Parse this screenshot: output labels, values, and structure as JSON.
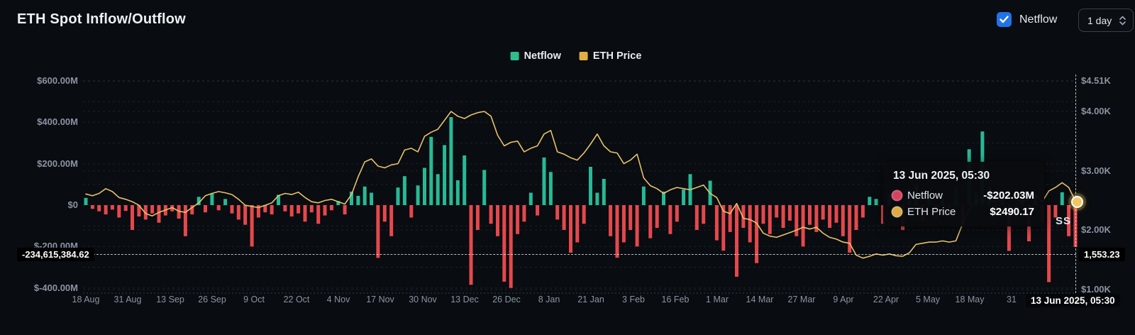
{
  "header": {
    "title": "ETH Spot Inflow/Outflow"
  },
  "controls": {
    "checkbox_label": "Netflow",
    "checkbox_checked": true,
    "interval_selected": "1 day",
    "accent_blue": "#2272e8"
  },
  "legend": {
    "items": [
      {
        "label": "Netflow",
        "color": "#2ebd8c"
      },
      {
        "label": "ETH Price",
        "color": "#e0ae45"
      }
    ]
  },
  "axes": {
    "left_ticks": [
      "$600.00M",
      "$400.00M",
      "$200.00M",
      "$0",
      "$-200.00M",
      "$-400.00M"
    ],
    "right_ticks": [
      "$4.51K",
      "$4.00K",
      "$3.00K",
      "$2.00K",
      "$1.00K"
    ],
    "x_ticks": [
      "18 Aug",
      "31 Aug",
      "13 Sep",
      "26 Sep",
      "9 Oct",
      "22 Oct",
      "4 Nov",
      "17 Nov",
      "30 Nov",
      "13 Dec",
      "26 Dec",
      "8 Jan",
      "21 Jan",
      "3 Feb",
      "16 Feb",
      "1 Mar",
      "14 Mar",
      "27 Mar",
      "9 Apr",
      "22 Apr",
      "5 May",
      "18 May",
      "31"
    ]
  },
  "crosshair": {
    "left_value": "-234,615,384.62",
    "right_value": "1,553.23",
    "x_value": "13 Jun 2025, 05:30"
  },
  "tooltip": {
    "title": "13 Jun 2025, 05:30",
    "rows": [
      {
        "label": "Netflow",
        "value": "-$202.03M",
        "color": "#d9405f"
      },
      {
        "label": "ETH Price",
        "value": "$2490.17",
        "color": "#e2a93f"
      }
    ]
  },
  "watermark": "SS",
  "chart_data": {
    "type": "bar",
    "title": "ETH Spot Inflow/Outflow",
    "x_start": "18 Aug 2024",
    "x_end": "13 Jun 2025, 05:30",
    "sample_interval_days": 2,
    "ylim_left_millions": [
      -425,
      600
    ],
    "ylim_right_thousands": [
      0.94,
      4.51
    ],
    "left_gridlines_m": [
      600,
      500,
      400,
      300,
      200,
      100,
      0,
      -100,
      -200,
      -300,
      -400
    ],
    "right_gridlines_k": [
      4.51,
      4.0,
      3.0,
      2.0,
      1.0
    ],
    "grid": "dashed",
    "legend_position": "top-center",
    "colors": {
      "positive": "#27b996",
      "negative": "#e5484d",
      "price_line": "#e6c269"
    },
    "series": [
      {
        "name": "Netflow",
        "type": "bar",
        "unit": "$M",
        "axis": "left",
        "values": [
          35,
          -18,
          -30,
          -45,
          -22,
          -60,
          -28,
          -120,
          -55,
          -70,
          -40,
          -85,
          -50,
          -30,
          -65,
          -150,
          -45,
          40,
          -35,
          55,
          -25,
          30,
          -40,
          -70,
          -95,
          -200,
          -60,
          -35,
          -45,
          50,
          -30,
          -55,
          -40,
          -80,
          -35,
          -90,
          -50,
          -25,
          20,
          -45,
          65,
          45,
          90,
          60,
          -255,
          -80,
          -150,
          85,
          140,
          -60,
          95,
          180,
          330,
          150,
          290,
          425,
          120,
          240,
          -385,
          -120,
          170,
          -90,
          -150,
          -370,
          -400,
          -140,
          -80,
          60,
          -50,
          230,
          160,
          -70,
          -120,
          -230,
          -180,
          -90,
          185,
          60,
          127,
          -150,
          -254,
          -180,
          -120,
          -200,
          90,
          -160,
          -110,
          65,
          -140,
          -80,
          75,
          150,
          -120,
          -90,
          118,
          -170,
          -220,
          -130,
          -346,
          -110,
          -180,
          -280,
          -90,
          -140,
          -60,
          -110,
          -75,
          -150,
          -200,
          -95,
          -130,
          -70,
          -110,
          -85,
          -150,
          -230,
          -120,
          -60,
          40,
          30,
          -90,
          55,
          -40,
          -120,
          80,
          100,
          -80,
          45,
          -60,
          35,
          -50,
          80,
          -100,
          270,
          60,
          356,
          90,
          -45,
          60,
          -221,
          -55,
          40,
          -175,
          50,
          -80,
          -372,
          -60,
          62,
          -150,
          -202.03
        ]
      },
      {
        "name": "ETH Price",
        "type": "line",
        "unit": "$K",
        "axis": "right",
        "values": [
          2.61,
          2.58,
          2.62,
          2.7,
          2.65,
          2.55,
          2.52,
          2.48,
          2.42,
          2.28,
          2.24,
          2.3,
          2.34,
          2.38,
          2.32,
          2.3,
          2.38,
          2.46,
          2.58,
          2.62,
          2.65,
          2.63,
          2.6,
          2.52,
          2.42,
          2.4,
          2.38,
          2.42,
          2.46,
          2.58,
          2.62,
          2.6,
          2.64,
          2.55,
          2.48,
          2.46,
          2.5,
          2.52,
          2.48,
          2.44,
          2.6,
          2.9,
          3.15,
          3.2,
          3.08,
          3.05,
          3.1,
          3.12,
          3.35,
          3.38,
          3.32,
          3.58,
          3.65,
          3.7,
          3.85,
          4.0,
          3.92,
          3.88,
          3.94,
          3.98,
          4.0,
          3.92,
          3.6,
          3.42,
          3.48,
          3.5,
          3.32,
          3.38,
          3.42,
          3.62,
          3.68,
          3.32,
          3.28,
          3.22,
          3.18,
          3.3,
          3.45,
          3.62,
          3.42,
          3.32,
          3.3,
          3.12,
          3.18,
          3.28,
          2.88,
          2.75,
          2.7,
          2.62,
          2.68,
          2.72,
          2.7,
          2.68,
          2.72,
          2.76,
          2.62,
          2.55,
          2.32,
          2.28,
          2.45,
          2.2,
          2.18,
          2.12,
          1.95,
          1.9,
          1.88,
          1.92,
          1.96,
          2.0,
          2.05,
          2.02,
          2.05,
          1.95,
          1.88,
          1.85,
          1.8,
          1.78,
          1.58,
          1.53,
          1.56,
          1.6,
          1.58,
          1.6,
          1.57,
          1.56,
          1.62,
          1.76,
          1.78,
          1.8,
          1.8,
          1.82,
          1.8,
          1.82,
          2.1,
          2.35,
          2.48,
          2.55,
          2.52,
          2.48,
          2.52,
          2.56,
          2.52,
          2.48,
          2.52,
          2.58,
          2.48,
          2.66,
          2.72,
          2.8,
          2.72,
          2.49
        ]
      }
    ]
  }
}
